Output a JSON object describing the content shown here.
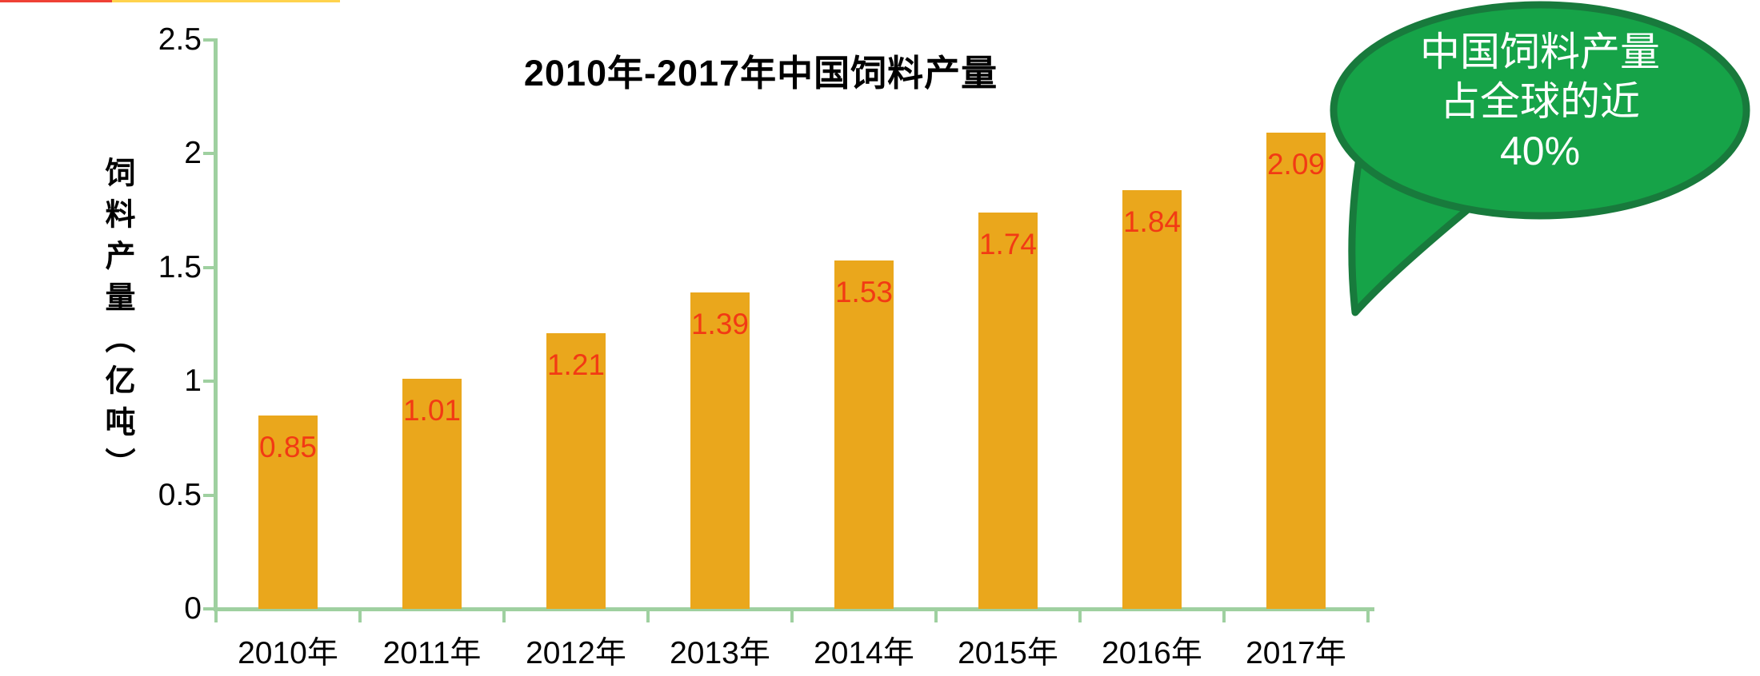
{
  "chart_data": {
    "type": "bar",
    "title": "2010年-2017年中国饲料产量",
    "categories": [
      "2010年",
      "2011年",
      "2012年",
      "2013年",
      "2014年",
      "2015年",
      "2016年",
      "2017年"
    ],
    "values": [
      0.85,
      1.01,
      1.21,
      1.39,
      1.53,
      1.74,
      1.84,
      2.09
    ],
    "value_labels": [
      "0.85",
      "1.01",
      "1.21",
      "1.39",
      "1.53",
      "1.74",
      "1.84",
      "2.09"
    ],
    "ylabel": "饲料产量（亿吨）",
    "xlabel": "",
    "yticks": [
      0,
      0.5,
      1,
      1.5,
      2,
      2.5
    ],
    "ytick_labels": [
      "0",
      "0.5",
      "1",
      "1.5",
      "2",
      "2.5"
    ],
    "ylim": [
      0,
      2.5
    ],
    "grid": false,
    "legend": null,
    "colors": {
      "bar": "#eaa71c",
      "value_label": "#f23a14",
      "axis": "#9fd0a0",
      "title_text": "#000000",
      "tick_text": "#000000"
    }
  },
  "callout": {
    "lines": [
      "中国饲料产量",
      "占全球的近",
      "40%"
    ],
    "colors": {
      "fill": "#16a348",
      "border": "#187a3c",
      "text": "#ffffff"
    }
  },
  "artifacts": {
    "top_left_red": "#ef4136",
    "top_yellow": "#ffd34d"
  }
}
